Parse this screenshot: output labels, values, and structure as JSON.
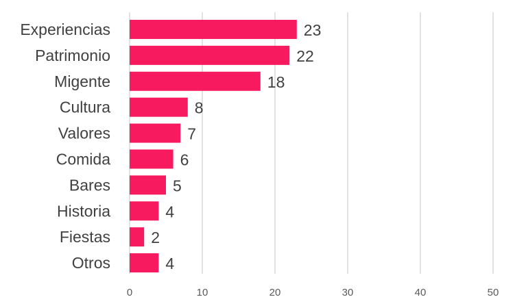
{
  "chart_data": {
    "type": "bar",
    "orientation": "horizontal",
    "title": "",
    "xlabel": "",
    "ylabel": "",
    "categories": [
      "Experiencias",
      "Patrimonio",
      "Migente",
      "Cultura",
      "Valores",
      "Comida",
      "Bares",
      "Historia",
      "Fiestas",
      "Otros"
    ],
    "values": [
      23,
      22,
      18,
      8,
      7,
      6,
      5,
      4,
      2,
      4
    ],
    "xlim": [
      0,
      50
    ],
    "ticks": [
      0,
      10,
      20,
      30,
      40,
      50
    ],
    "tick_labels": [
      "0",
      "10",
      "20",
      "30",
      "40",
      "50"
    ],
    "grid": true,
    "data_labels": true,
    "legend": "none",
    "bar_color": "#f81a5e",
    "grid_color": "#d9d9d9",
    "text_color": "#404040"
  }
}
